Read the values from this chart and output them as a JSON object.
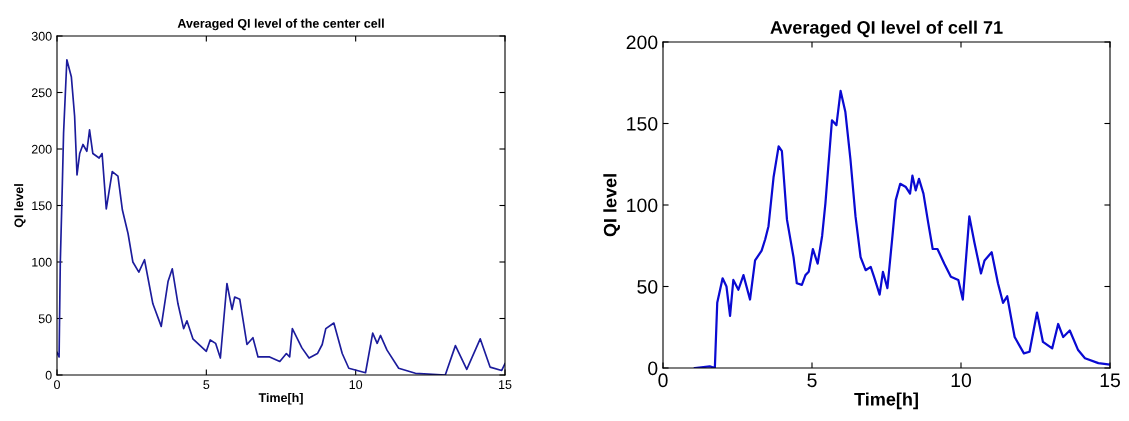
{
  "chart_data": [
    {
      "type": "line",
      "title": "Averaged QI level of the center cell",
      "xlabel": "Time[h]",
      "ylabel": "QI level",
      "xlim": [
        0,
        15
      ],
      "xticks": [
        0,
        5,
        10,
        15
      ],
      "ylim": [
        0,
        300
      ],
      "yticks": [
        0,
        50,
        100,
        150,
        200,
        250,
        300
      ],
      "grid": false,
      "legend": false,
      "series": [
        {
          "color": "#1c1c9c",
          "x": [
            0,
            0.07,
            0.11,
            0.18,
            0.22,
            0.33,
            0.48,
            0.59,
            0.67,
            0.76,
            0.87,
            1.0,
            1.09,
            1.2,
            1.41,
            1.51,
            1.65,
            1.85,
            2.04,
            2.19,
            2.38,
            2.54,
            2.74,
            2.93,
            3.21,
            3.49,
            3.72,
            3.86,
            4.05,
            4.24,
            4.35,
            4.55,
            5.0,
            5.13,
            5.31,
            5.47,
            5.69,
            5.86,
            5.95,
            6.12,
            6.36,
            6.56,
            6.73,
            7.12,
            7.46,
            7.68,
            7.79,
            7.88,
            8.2,
            8.44,
            8.72,
            8.88,
            9.0,
            9.27,
            9.55,
            9.77,
            10.33,
            10.57,
            10.72,
            10.83,
            11.05,
            11.44,
            12.0,
            13.0,
            13.34,
            13.72,
            14.17,
            14.5,
            14.89,
            15.0
          ],
          "values": [
            20,
            16,
            99,
            170,
            214,
            279,
            264,
            229,
            177,
            196,
            204,
            198,
            217,
            196,
            192,
            196,
            147,
            180,
            176,
            146,
            125,
            100,
            91,
            102,
            63,
            43,
            83,
            94,
            63,
            41,
            48,
            32,
            21,
            31,
            28,
            15,
            81,
            58,
            69,
            67,
            27,
            33,
            16,
            16,
            12,
            19,
            16,
            41,
            24,
            15,
            19,
            27,
            41,
            46,
            19,
            6,
            2,
            37,
            28,
            35,
            22,
            6,
            1.5,
            0,
            26,
            5,
            32,
            7,
            4,
            10
          ]
        }
      ]
    },
    {
      "type": "line",
      "title": "Averaged QI level of cell 71",
      "xlabel": "Time[h]",
      "ylabel": "QI level",
      "xlim": [
        0,
        15
      ],
      "xticks": [
        0,
        5,
        10,
        15
      ],
      "ylim": [
        0,
        200
      ],
      "yticks": [
        0,
        50,
        100,
        150,
        200
      ],
      "grid": false,
      "legend": false,
      "series": [
        {
          "color": "#0a0ad2",
          "x": [
            1.07,
            1.57,
            1.74,
            1.82,
            2.0,
            2.13,
            2.25,
            2.36,
            2.53,
            2.7,
            2.92,
            3.09,
            3.31,
            3.43,
            3.54,
            3.71,
            3.88,
            3.99,
            4.16,
            4.38,
            4.49,
            4.66,
            4.78,
            4.89,
            5.03,
            5.19,
            5.34,
            5.45,
            5.67,
            5.82,
            5.96,
            6.12,
            6.29,
            6.46,
            6.63,
            6.8,
            6.97,
            7.08,
            7.27,
            7.38,
            7.53,
            7.7,
            7.81,
            7.96,
            8.15,
            8.29,
            8.37,
            8.48,
            8.59,
            8.74,
            8.9,
            9.05,
            9.21,
            9.44,
            9.66,
            9.91,
            10.06,
            10.28,
            10.45,
            10.67,
            10.79,
            11.03,
            11.24,
            11.41,
            11.55,
            11.8,
            12.11,
            12.3,
            12.55,
            12.75,
            13.06,
            13.26,
            13.43,
            13.65,
            13.93,
            14.16,
            14.61,
            15.0
          ],
          "values": [
            0,
            1,
            0,
            40,
            55,
            50,
            32,
            54,
            48,
            57,
            42,
            66,
            72,
            79,
            87,
            117,
            136,
            133,
            91,
            68,
            52,
            51,
            57,
            59,
            73,
            64,
            81,
            101,
            152,
            149,
            170,
            157,
            128,
            93,
            68,
            60,
            62,
            56,
            45,
            59,
            49,
            81,
            103,
            113,
            111,
            107,
            118,
            109,
            116,
            107,
            89,
            73,
            73,
            64,
            56,
            54,
            42,
            93,
            77,
            58,
            66,
            71,
            52,
            40,
            44,
            19,
            9,
            10,
            34,
            16,
            12,
            27,
            19,
            23,
            11,
            6,
            3,
            2
          ]
        }
      ]
    }
  ]
}
